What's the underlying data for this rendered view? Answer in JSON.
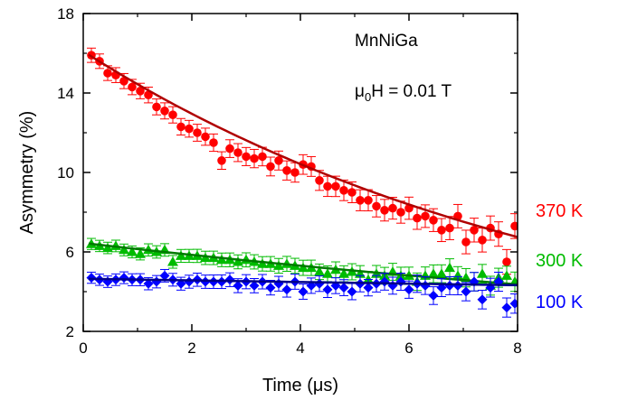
{
  "chart_data": {
    "type": "scatter",
    "xlabel": "Time (μs)",
    "ylabel": "Asymmetry (%)",
    "xlim": [
      0,
      8
    ],
    "ylim": [
      2,
      18
    ],
    "xticks": [
      "0",
      "2",
      "4",
      "6",
      "8"
    ],
    "yticks": [
      "2",
      "6",
      "10",
      "14",
      "18"
    ],
    "grid": false,
    "annotations": [
      "MnNiGa",
      "μ0H = 0.01 T"
    ],
    "series": [
      {
        "name": "370 K",
        "color": "#ff0000",
        "marker": "circle",
        "fit": {
          "a0": 16.1,
          "tau": 9.2
        },
        "x": [
          0.15,
          0.3,
          0.45,
          0.6,
          0.75,
          0.9,
          1.05,
          1.2,
          1.35,
          1.5,
          1.65,
          1.8,
          1.95,
          2.1,
          2.25,
          2.4,
          2.55,
          2.7,
          2.85,
          3.0,
          3.15,
          3.3,
          3.45,
          3.6,
          3.75,
          3.9,
          4.05,
          4.2,
          4.35,
          4.5,
          4.65,
          4.8,
          4.95,
          5.1,
          5.25,
          5.4,
          5.55,
          5.7,
          5.85,
          6.0,
          6.15,
          6.3,
          6.45,
          6.6,
          6.75,
          6.9,
          7.05,
          7.2,
          7.35,
          7.5,
          7.65,
          7.8,
          7.95
        ],
        "y": [
          15.9,
          15.6,
          15.0,
          14.9,
          14.6,
          14.3,
          14.1,
          13.9,
          13.3,
          13.1,
          12.9,
          12.3,
          12.2,
          12.0,
          11.8,
          11.5,
          10.6,
          11.2,
          11.0,
          10.8,
          10.7,
          10.8,
          10.3,
          10.6,
          10.1,
          10.0,
          10.4,
          10.3,
          9.6,
          9.3,
          9.3,
          9.1,
          9.0,
          8.6,
          8.6,
          8.3,
          8.1,
          8.2,
          8.0,
          8.2,
          7.7,
          7.8,
          7.6,
          7.1,
          7.2,
          7.8,
          6.5,
          7.1,
          6.6,
          7.2,
          6.9,
          5.5,
          7.3
        ]
      },
      {
        "name": "300 K",
        "color": "#00bb00",
        "marker": "triangle",
        "fit": {
          "a0": 6.45,
          "tau": 20.5
        },
        "x": [
          0.15,
          0.3,
          0.45,
          0.6,
          0.75,
          0.9,
          1.05,
          1.2,
          1.35,
          1.5,
          1.65,
          1.8,
          1.95,
          2.1,
          2.25,
          2.4,
          2.55,
          2.7,
          2.85,
          3.0,
          3.15,
          3.3,
          3.45,
          3.6,
          3.75,
          3.9,
          4.05,
          4.2,
          4.35,
          4.5,
          4.65,
          4.8,
          4.95,
          5.1,
          5.25,
          5.4,
          5.55,
          5.7,
          5.85,
          6.0,
          6.15,
          6.3,
          6.45,
          6.6,
          6.75,
          6.9,
          7.05,
          7.2,
          7.35,
          7.5,
          7.65,
          7.8,
          7.95
        ],
        "y": [
          6.4,
          6.3,
          6.2,
          6.3,
          6.1,
          6.0,
          5.9,
          6.1,
          6.0,
          6.1,
          5.5,
          5.8,
          5.8,
          5.8,
          5.7,
          5.7,
          5.6,
          5.6,
          5.5,
          5.6,
          5.5,
          5.4,
          5.4,
          5.3,
          5.4,
          5.3,
          5.2,
          5.2,
          5.0,
          4.9,
          5.1,
          4.9,
          5.0,
          4.9,
          4.6,
          4.9,
          4.8,
          5.0,
          4.8,
          4.8,
          4.5,
          4.8,
          4.9,
          4.9,
          5.2,
          4.8,
          4.7,
          4.5,
          4.9,
          4.3,
          4.7,
          4.8,
          4.5
        ]
      },
      {
        "name": "100 K",
        "color": "#0000ff",
        "marker": "diamond",
        "fit": {
          "a0": 4.65,
          "tau": 110
        },
        "x": [
          0.15,
          0.3,
          0.45,
          0.6,
          0.75,
          0.9,
          1.05,
          1.2,
          1.35,
          1.5,
          1.65,
          1.8,
          1.95,
          2.1,
          2.25,
          2.4,
          2.55,
          2.7,
          2.85,
          3.0,
          3.15,
          3.3,
          3.45,
          3.6,
          3.75,
          3.9,
          4.05,
          4.2,
          4.35,
          4.5,
          4.65,
          4.8,
          4.95,
          5.1,
          5.25,
          5.4,
          5.55,
          5.7,
          5.85,
          6.0,
          6.15,
          6.3,
          6.45,
          6.6,
          6.75,
          6.9,
          7.05,
          7.2,
          7.35,
          7.5,
          7.65,
          7.8,
          7.95
        ],
        "y": [
          4.7,
          4.6,
          4.5,
          4.6,
          4.7,
          4.6,
          4.6,
          4.4,
          4.5,
          4.8,
          4.6,
          4.4,
          4.5,
          4.6,
          4.5,
          4.5,
          4.5,
          4.6,
          4.3,
          4.5,
          4.3,
          4.5,
          4.2,
          4.4,
          4.1,
          4.5,
          4.0,
          4.3,
          4.4,
          4.1,
          4.3,
          4.2,
          4.0,
          4.4,
          4.2,
          4.4,
          4.5,
          4.3,
          4.5,
          4.1,
          4.4,
          4.3,
          3.8,
          4.2,
          4.3,
          4.3,
          4.0,
          4.5,
          3.6,
          4.2,
          4.5,
          3.2,
          3.4
        ]
      }
    ]
  }
}
